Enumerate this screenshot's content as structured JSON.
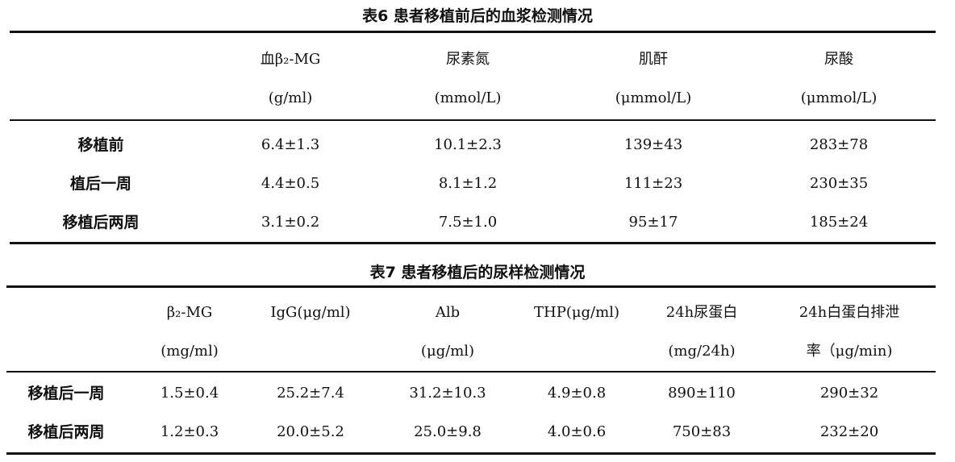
{
  "table6": {
    "title": "表6  患者移植前后的血浆检测情况",
    "headers": [
      {
        "name": "血β₂-MG",
        "unit": "(g/ml)"
      },
      {
        "name": "尿素氮",
        "unit": "(mmol/L)"
      },
      {
        "name": "肌酐",
        "unit": "(μmmol/L)"
      },
      {
        "name": "尿酸",
        "unit": "(μmmol/L)"
      }
    ],
    "rows": [
      {
        "label": "移植前",
        "values": [
          "6.4±1.3",
          "10.1±2.3",
          "139±43",
          "283±78"
        ]
      },
      {
        "label": "植后一周",
        "values": [
          "4.4±0.5",
          "8.1±1.2",
          "111±23",
          "230±35"
        ]
      },
      {
        "label": "移植后两周",
        "values": [
          "3.1±0.2",
          "7.5±1.0",
          "95±17",
          "185±24"
        ]
      }
    ]
  },
  "table7": {
    "title": "表7  患者移植后的尿样检测情况",
    "headers": [
      {
        "name": "β₂-MG",
        "unit": "(mg/ml)"
      },
      {
        "name": "IgG(μg/ml)",
        "unit": ""
      },
      {
        "name": "Alb",
        "unit": "(μg/ml)"
      },
      {
        "name": "THP(μg/ml)",
        "unit": ""
      },
      {
        "name": "24h尿蛋白",
        "unit": "(mg/24h)"
      },
      {
        "name": "24h白蛋白排泄",
        "unit": "率（μg/min)"
      }
    ],
    "rows": [
      {
        "label": "移植后一周",
        "values": [
          "1.5±0.4",
          "25.2±7.4",
          "31.2±10.3",
          "4.9±0.8",
          "890±110",
          "290±32"
        ]
      },
      {
        "label": "移植后两周",
        "values": [
          "1.2±0.3",
          "20.0±5.2",
          "25.0±9.8",
          "4.0±0.6",
          "750±83",
          "232±20"
        ]
      }
    ]
  }
}
